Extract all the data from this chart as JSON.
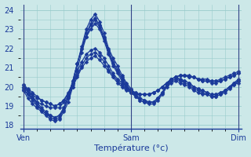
{
  "bg_color": "#cce8e8",
  "grid_color": "#99cccc",
  "line_color": "#1a3a9a",
  "marker": "D",
  "markersize": 2.5,
  "linewidth": 0.9,
  "ylim": [
    17.8,
    24.3
  ],
  "yticks": [
    18,
    19,
    20,
    21,
    22,
    23
  ],
  "xtick_labels": [
    "Ven",
    "Sam",
    "Dim"
  ],
  "xtick_positions": [
    0,
    16,
    32
  ],
  "xlabel": "Température (°c)",
  "n_points": 49,
  "series": [
    [
      20.0,
      19.7,
      19.4,
      19.1,
      18.8,
      18.6,
      18.4,
      18.3,
      18.4,
      18.8,
      19.4,
      20.2,
      21.2,
      22.1,
      23.0,
      23.5,
      23.8,
      23.4,
      22.8,
      22.0,
      21.5,
      21.1,
      20.6,
      20.2,
      19.9,
      19.6,
      19.4,
      19.3,
      19.2,
      19.2,
      19.4,
      19.7,
      20.1,
      20.3,
      20.4,
      20.3,
      20.2,
      20.1,
      19.9,
      19.8,
      19.7,
      19.6,
      19.5,
      19.5,
      19.6,
      19.7,
      19.9,
      20.1,
      20.2
    ],
    [
      19.8,
      19.4,
      19.1,
      18.9,
      18.7,
      18.5,
      18.3,
      18.2,
      18.3,
      18.7,
      19.2,
      20.0,
      20.9,
      21.8,
      22.6,
      23.2,
      23.5,
      23.1,
      22.5,
      21.8,
      21.2,
      20.8,
      20.4,
      20.0,
      19.7,
      19.5,
      19.3,
      19.2,
      19.1,
      19.1,
      19.3,
      19.6,
      20.0,
      20.2,
      20.3,
      20.2,
      20.1,
      20.0,
      19.8,
      19.7,
      19.6,
      19.6,
      19.5,
      19.5,
      19.6,
      19.8,
      20.0,
      20.2,
      20.3
    ],
    [
      19.9,
      19.6,
      19.3,
      19.0,
      18.8,
      18.6,
      18.5,
      18.4,
      18.5,
      18.9,
      19.5,
      20.3,
      21.2,
      22.0,
      22.8,
      23.3,
      23.6,
      23.2,
      22.6,
      21.9,
      21.3,
      20.9,
      20.5,
      20.1,
      19.8,
      19.6,
      19.4,
      19.3,
      19.2,
      19.2,
      19.4,
      19.7,
      20.1,
      20.4,
      20.5,
      20.4,
      20.3,
      20.2,
      20.0,
      19.9,
      19.8,
      19.7,
      19.6,
      19.6,
      19.7,
      19.8,
      20.0,
      20.2,
      20.4
    ],
    [
      20.1,
      19.9,
      19.7,
      19.5,
      19.3,
      19.2,
      19.1,
      19.0,
      19.1,
      19.3,
      19.7,
      20.2,
      20.8,
      21.3,
      21.7,
      21.9,
      22.0,
      21.8,
      21.5,
      21.1,
      20.7,
      20.4,
      20.2,
      20.0,
      19.8,
      19.7,
      19.6,
      19.6,
      19.6,
      19.7,
      19.8,
      20.0,
      20.2,
      20.4,
      20.5,
      20.6,
      20.6,
      20.6,
      20.5,
      20.4,
      20.4,
      20.4,
      20.3,
      20.3,
      20.4,
      20.5,
      20.6,
      20.7,
      20.8
    ],
    [
      20.0,
      19.8,
      19.6,
      19.4,
      19.3,
      19.2,
      19.1,
      19.0,
      19.1,
      19.3,
      19.6,
      20.1,
      20.6,
      21.1,
      21.5,
      21.7,
      21.8,
      21.6,
      21.3,
      20.9,
      20.6,
      20.3,
      20.1,
      19.9,
      19.8,
      19.7,
      19.6,
      19.6,
      19.6,
      19.7,
      19.8,
      20.0,
      20.2,
      20.4,
      20.5,
      20.6,
      20.6,
      20.5,
      20.5,
      20.4,
      20.3,
      20.3,
      20.3,
      20.3,
      20.3,
      20.4,
      20.5,
      20.6,
      20.7
    ],
    [
      19.8,
      19.6,
      19.4,
      19.2,
      19.1,
      19.0,
      18.9,
      18.9,
      18.9,
      19.2,
      19.5,
      20.0,
      20.5,
      21.0,
      21.3,
      21.5,
      21.6,
      21.4,
      21.1,
      20.8,
      20.5,
      20.2,
      20.0,
      19.8,
      19.7,
      19.6,
      19.6,
      19.6,
      19.6,
      19.7,
      19.8,
      20.0,
      20.2,
      20.4,
      20.5,
      20.6,
      20.6,
      20.5,
      20.5,
      20.4,
      20.3,
      20.3,
      20.2,
      20.2,
      20.3,
      20.4,
      20.5,
      20.6,
      20.7
    ],
    [
      20.1,
      19.8,
      19.5,
      19.2,
      18.9,
      18.7,
      18.5,
      18.4,
      18.5,
      18.9,
      19.5,
      20.3,
      21.2,
      22.0,
      22.6,
      23.0,
      23.3,
      23.0,
      22.4,
      21.7,
      21.1,
      20.7,
      20.3,
      19.9,
      19.7,
      19.5,
      19.3,
      19.2,
      19.2,
      19.2,
      19.4,
      19.7,
      20.1,
      20.3,
      20.4,
      20.4,
      20.3,
      20.2,
      20.0,
      19.9,
      19.8,
      19.7,
      19.6,
      19.6,
      19.7,
      19.8,
      20.0,
      20.1,
      20.3
    ]
  ]
}
